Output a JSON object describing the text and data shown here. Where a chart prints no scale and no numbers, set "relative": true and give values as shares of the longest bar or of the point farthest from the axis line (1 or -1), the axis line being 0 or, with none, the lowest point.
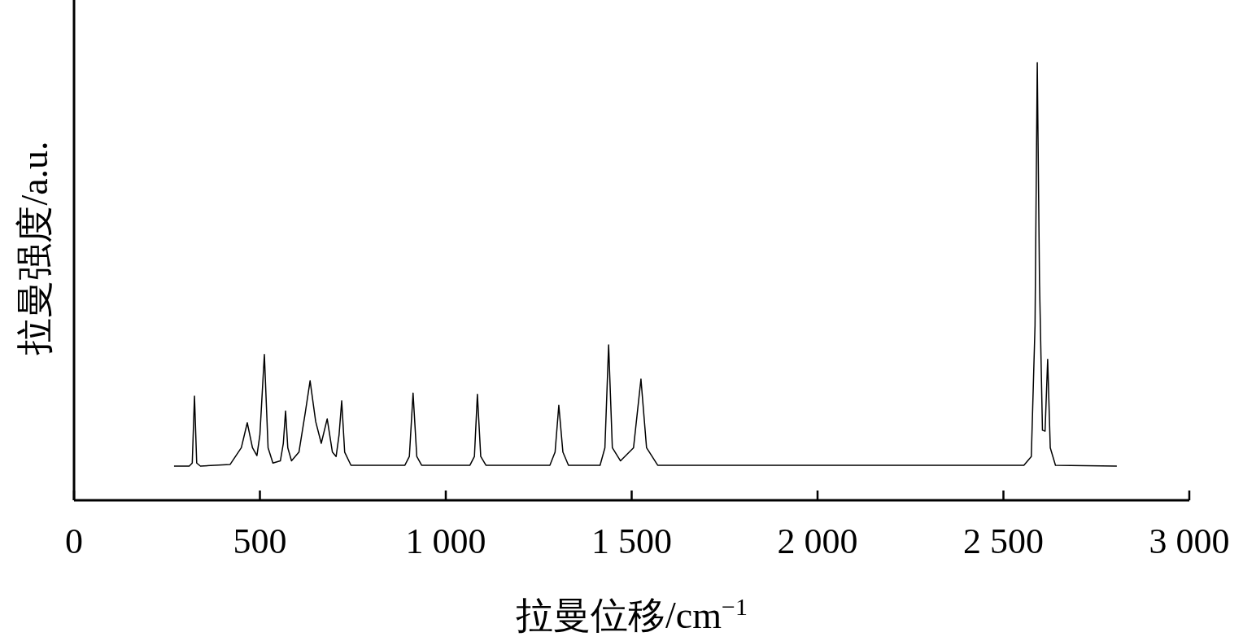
{
  "chart_data": {
    "type": "line",
    "relative": true,
    "xlabel": "拉曼位移/cm$^{−1}$",
    "ylabel": "拉曼强度/a.u.",
    "xlim": [
      0,
      3000
    ],
    "xticks": [
      0,
      500,
      {
        "value": 1000,
        "label": "1 000"
      },
      {
        "value": 1500,
        "label": "1 500"
      },
      {
        "value": 2000,
        "label": "2 000"
      },
      {
        "value": 2500,
        "label": "2 500"
      },
      {
        "value": 3000,
        "label": "3 000"
      }
    ],
    "grid": false,
    "line_style": "solid",
    "x": [
      269,
      310,
      318,
      324,
      330,
      340,
      420,
      450,
      466,
      480,
      492,
      500,
      512,
      522,
      535,
      555,
      563,
      569,
      575,
      585,
      605,
      622,
      635,
      650,
      665,
      681,
      695,
      705,
      713,
      720,
      728,
      745,
      890,
      902,
      912,
      922,
      935,
      1065,
      1077,
      1085,
      1094,
      1108,
      1280,
      1294,
      1304,
      1315,
      1330,
      1415,
      1428,
      1438,
      1448,
      1470,
      1505,
      1525,
      1540,
      1570,
      2555,
      2575,
      2585,
      2591,
      2597,
      2605,
      2612,
      2619,
      2626,
      2640,
      2805
    ],
    "series": [
      {
        "color": "#000000",
        "values": [
          0.078,
          0.078,
          0.085,
          0.238,
          0.085,
          0.078,
          0.082,
          0.12,
          0.177,
          0.12,
          0.102,
          0.15,
          0.333,
          0.12,
          0.085,
          0.09,
          0.13,
          0.204,
          0.12,
          0.09,
          0.11,
          0.2,
          0.273,
          0.18,
          0.13,
          0.186,
          0.11,
          0.1,
          0.15,
          0.227,
          0.11,
          0.08,
          0.08,
          0.1,
          0.245,
          0.1,
          0.08,
          0.08,
          0.1,
          0.242,
          0.1,
          0.08,
          0.08,
          0.11,
          0.217,
          0.11,
          0.08,
          0.08,
          0.12,
          0.355,
          0.12,
          0.09,
          0.12,
          0.277,
          0.12,
          0.08,
          0.08,
          0.1,
          0.4,
          1.0,
          0.5,
          0.16,
          0.158,
          0.322,
          0.12,
          0.08,
          0.078
        ]
      }
    ]
  }
}
